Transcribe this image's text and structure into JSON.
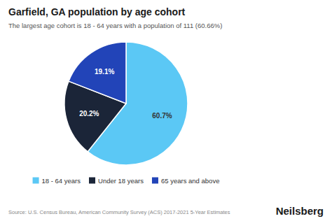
{
  "chart_data": {
    "type": "pie",
    "title": "Garfield, GA population by age cohort",
    "subtitle": "The largest age cohort is 18 - 64 years with a population of 111 (60.66%)",
    "categories": [
      "18 - 64 years",
      "Under 18 years",
      "65 years and above"
    ],
    "values": [
      60.7,
      20.2,
      19.1
    ],
    "value_labels": [
      "60.7%",
      "20.2%",
      "19.1%"
    ],
    "data_labels": true,
    "colors": [
      "#5bc8f5",
      "#1b2538",
      "#2244b8"
    ],
    "legend": "bottom",
    "annotations": [
      "Source: U.S. Census Bureau, American Community Survey (ACS) 2017-2021 5-Year Estimates",
      "Neilsberg"
    ]
  }
}
